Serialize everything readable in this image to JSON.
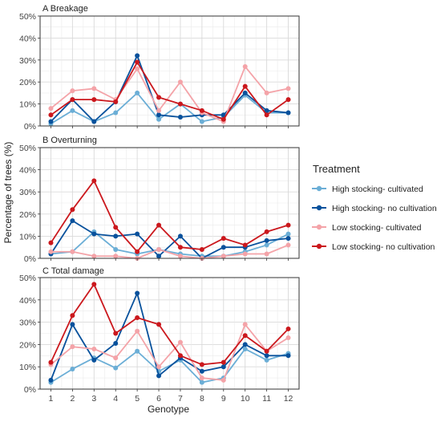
{
  "chart_data": {
    "type": "line",
    "xlabel": "Genotype",
    "ylabel": "Percentage of trees (%)",
    "x": [
      1,
      2,
      3,
      4,
      5,
      6,
      7,
      8,
      9,
      10,
      11,
      12
    ],
    "y_ticks": [
      "0%",
      "10%",
      "20%",
      "30%",
      "40%",
      "50%"
    ],
    "ylim": [
      0,
      50
    ],
    "grid": true,
    "legend": {
      "title": "Treatment",
      "placement": "right",
      "entries": [
        {
          "name": "High stocking- cultivated",
          "color": "#6baed6"
        },
        {
          "name": "High stocking- no cultivation",
          "color": "#08519c"
        },
        {
          "name": "Low stocking- cultivated",
          "color": "#f4a3a8"
        },
        {
          "name": "Low stocking- no cultivation",
          "color": "#cb181d"
        }
      ]
    },
    "panels": [
      {
        "title": "A Breakage",
        "series": [
          {
            "name": "High stocking- cultivated",
            "values": [
              1,
              7,
              2,
              6,
              15,
              3,
              10,
              2,
              4,
              14,
              6,
              6
            ]
          },
          {
            "name": "High stocking- no cultivation",
            "values": [
              2,
              12,
              2,
              11,
              32,
              5,
              4,
              5,
              5,
              15,
              7,
              6
            ]
          },
          {
            "name": "Low stocking- cultivated",
            "values": [
              8,
              16,
              17,
              12,
              26,
              7,
              20,
              6,
              2,
              27,
              15,
              17
            ]
          },
          {
            "name": "Low stocking- no cultivation",
            "values": [
              5,
              12,
              12,
              11,
              29,
              13,
              10,
              7,
              3,
              18,
              5,
              12
            ]
          }
        ]
      },
      {
        "title": "B Overturning",
        "series": [
          {
            "name": "High stocking- cultivated",
            "values": [
              2,
              3,
              12,
              4,
              2,
              4,
              2,
              1,
              1,
              3,
              6,
              11
            ]
          },
          {
            "name": "High stocking- no cultivation",
            "values": [
              2,
              17,
              11,
              10,
              11,
              1,
              10,
              0,
              5,
              5,
              8,
              9
            ]
          },
          {
            "name": "Low stocking- cultivated",
            "values": [
              3,
              3,
              1,
              1,
              0,
              4,
              1,
              0,
              1,
              2,
              2,
              6
            ]
          },
          {
            "name": "Low stocking- no cultivation",
            "values": [
              7,
              22,
              35,
              14,
              3,
              15,
              5,
              4,
              9,
              6,
              12,
              15
            ]
          }
        ]
      },
      {
        "title": "C Total damage",
        "series": [
          {
            "name": "High stocking- cultivated",
            "values": [
              3,
              9,
              14,
              9.5,
              17,
              8,
              13,
              3,
              5,
              18,
              13,
              16
            ]
          },
          {
            "name": "High stocking- no cultivation",
            "values": [
              4,
              29,
              13,
              20.5,
              43,
              6,
              14,
              8,
              10,
              20,
              15,
              15
            ]
          },
          {
            "name": "Low stocking- cultivated",
            "values": [
              11,
              19,
              18,
              14,
              26,
              10,
              21,
              5,
              4,
              29,
              17,
              23
            ]
          },
          {
            "name": "Low stocking- no cultivation",
            "values": [
              12,
              33,
              47,
              25,
              32,
              29,
              15,
              11,
              12,
              24,
              17,
              27
            ]
          }
        ]
      }
    ]
  }
}
